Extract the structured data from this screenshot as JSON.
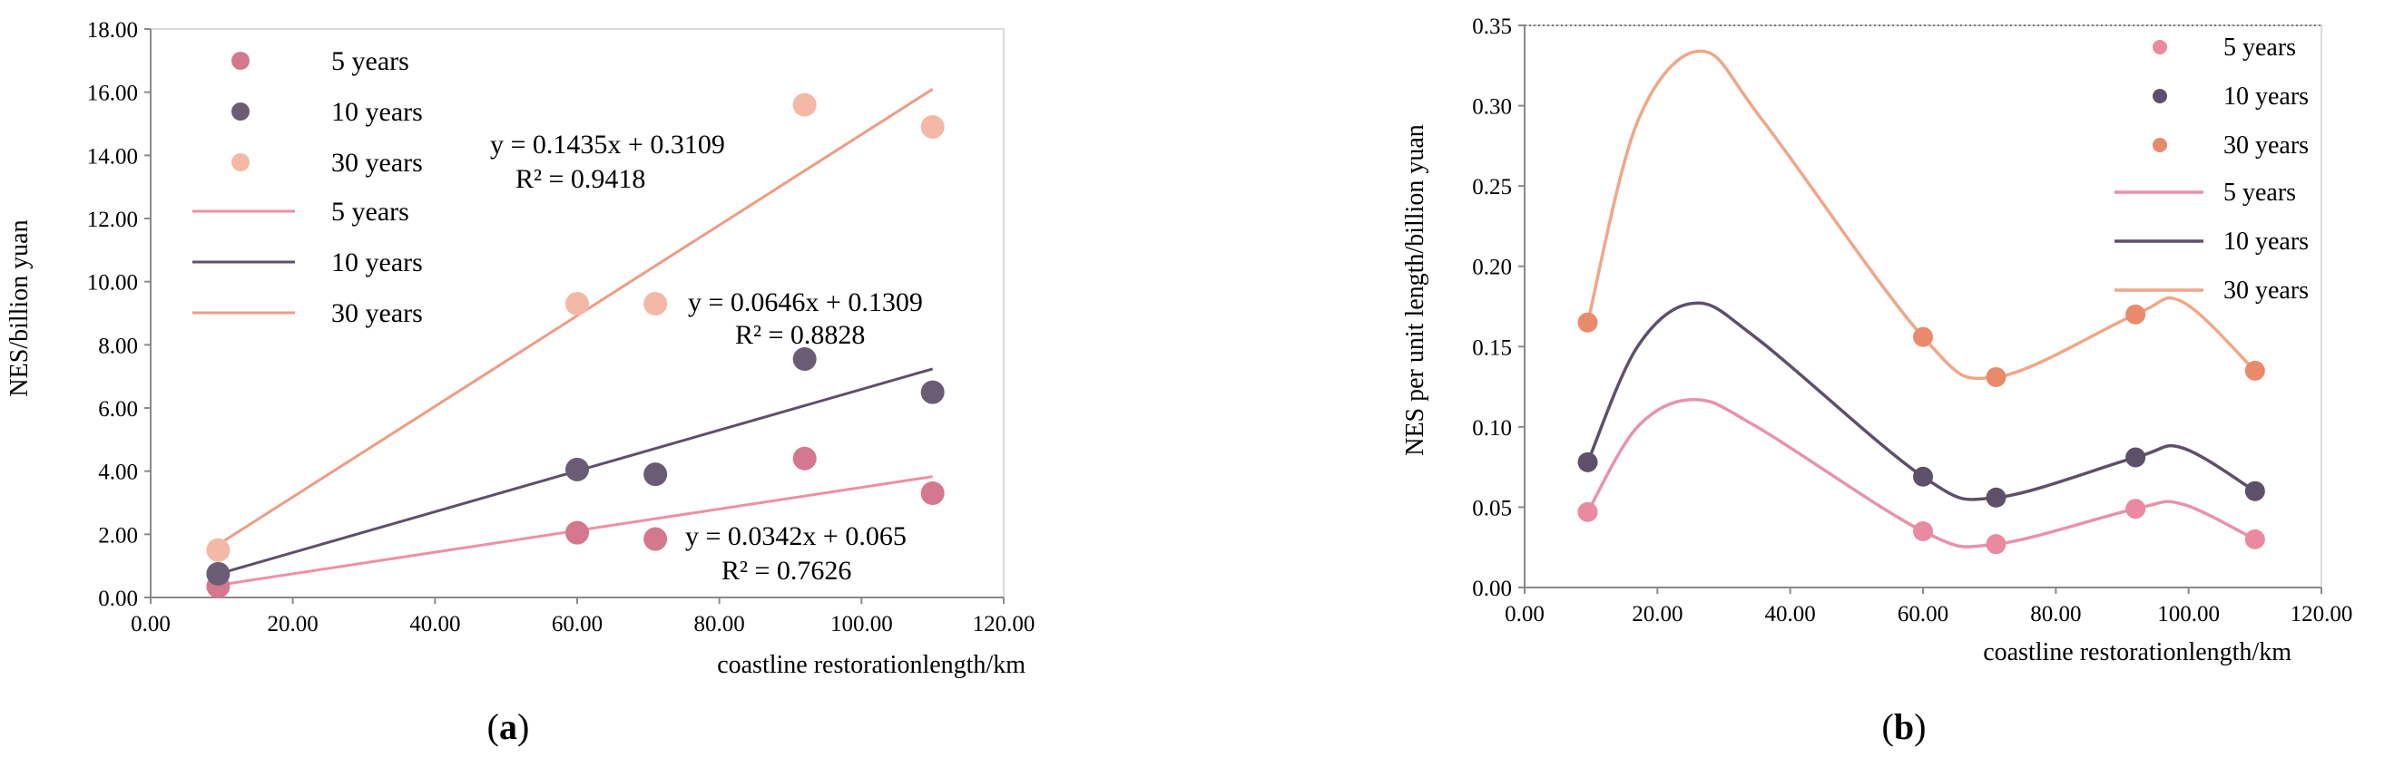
{
  "chart_data": [
    {
      "panel_label": "(a)",
      "panel_letter": "a",
      "type": "scatter",
      "xlabel": "coastline restorationlength/km",
      "ylabel": "NES/billion yuan",
      "xlim": [
        0,
        120
      ],
      "ylim": [
        0,
        18
      ],
      "xticks": [
        "0.00",
        "20.00",
        "40.00",
        "60.00",
        "80.00",
        "100.00",
        "120.00"
      ],
      "yticks": [
        "0.00",
        "2.00",
        "4.00",
        "6.00",
        "8.00",
        "10.00",
        "12.00",
        "14.00",
        "16.00",
        "18.00"
      ],
      "grid": false,
      "legend_position": "top-left",
      "series": [
        {
          "name": "5 years",
          "color": "#d4788f",
          "x": [
            9.5,
            60,
            71,
            92,
            110
          ],
          "y": [
            0.35,
            2.05,
            1.85,
            4.4,
            3.3
          ],
          "trendline": {
            "slope": 0.0342,
            "intercept": 0.065,
            "equation": "y = 0.0342x + 0.065",
            "r2": "R² = 0.7626"
          }
        },
        {
          "name": "10 years",
          "color": "#6b5c76",
          "x": [
            9.5,
            60,
            71,
            92,
            110
          ],
          "y": [
            0.75,
            4.05,
            3.9,
            7.55,
            6.5
          ],
          "trendline": {
            "slope": 0.0646,
            "intercept": 0.1309,
            "equation": "y = 0.0646x + 0.1309",
            "r2": "R² = 0.8828"
          }
        },
        {
          "name": "30 years",
          "color": "#f3b9a6",
          "x": [
            9.5,
            60,
            71,
            92,
            110
          ],
          "y": [
            1.5,
            9.3,
            9.3,
            15.6,
            14.9
          ],
          "trendline": {
            "slope": 0.1435,
            "intercept": 0.3109,
            "equation": "y = 0.1435x + 0.3109",
            "r2": "R² = 0.9418"
          }
        }
      ],
      "trendline_colors": {
        "5 years": "#ee8fa7",
        "10 years": "#5e5068",
        "30 years": "#ee9c85"
      }
    },
    {
      "panel_label": "(b)",
      "panel_letter": "b",
      "type": "line",
      "xlabel": "coastline restorationlength/km",
      "ylabel": "NES per unit length/billion yuan",
      "xlim": [
        0,
        120
      ],
      "ylim": [
        0,
        0.35
      ],
      "xticks": [
        "0.00",
        "20.00",
        "40.00",
        "60.00",
        "80.00",
        "100.00",
        "120.00"
      ],
      "yticks": [
        "0.00",
        "0.05",
        "0.10",
        "0.15",
        "0.20",
        "0.25",
        "0.30",
        "0.35"
      ],
      "grid": false,
      "legend_position": "top-right",
      "series": [
        {
          "name": "5 years",
          "marker_color": "#e98aa2",
          "line_color": "#e792ab",
          "x": [
            9.5,
            60,
            71,
            92,
            110
          ],
          "y": [
            0.047,
            0.035,
            0.027,
            0.049,
            0.03
          ],
          "curve_x": [
            9.5,
            17,
            25.5,
            35,
            60,
            71,
            92,
            99,
            110
          ],
          "curve_y": [
            0.047,
            0.1,
            0.117,
            0.1,
            0.035,
            0.027,
            0.049,
            0.052,
            0.03
          ]
        },
        {
          "name": "10 years",
          "marker_color": "#5e5068",
          "line_color": "#5e5068",
          "x": [
            9.5,
            60,
            71,
            92,
            110
          ],
          "y": [
            0.078,
            0.069,
            0.056,
            0.081,
            0.06
          ],
          "curve_x": [
            9.5,
            17,
            25.5,
            35,
            60,
            71,
            92,
            99,
            110
          ],
          "curve_y": [
            0.078,
            0.15,
            0.177,
            0.155,
            0.069,
            0.056,
            0.081,
            0.087,
            0.06
          ]
        },
        {
          "name": "30 years",
          "marker_color": "#ea8a6c",
          "line_color": "#f1a688",
          "x": [
            9.5,
            60,
            71,
            92,
            110
          ],
          "y": [
            0.165,
            0.156,
            0.131,
            0.17,
            0.135
          ],
          "curve_x": [
            9.5,
            17,
            26.5,
            36,
            60,
            71,
            92,
            99,
            110
          ],
          "curve_y": [
            0.165,
            0.29,
            0.334,
            0.29,
            0.156,
            0.131,
            0.17,
            0.178,
            0.135
          ]
        }
      ]
    }
  ]
}
